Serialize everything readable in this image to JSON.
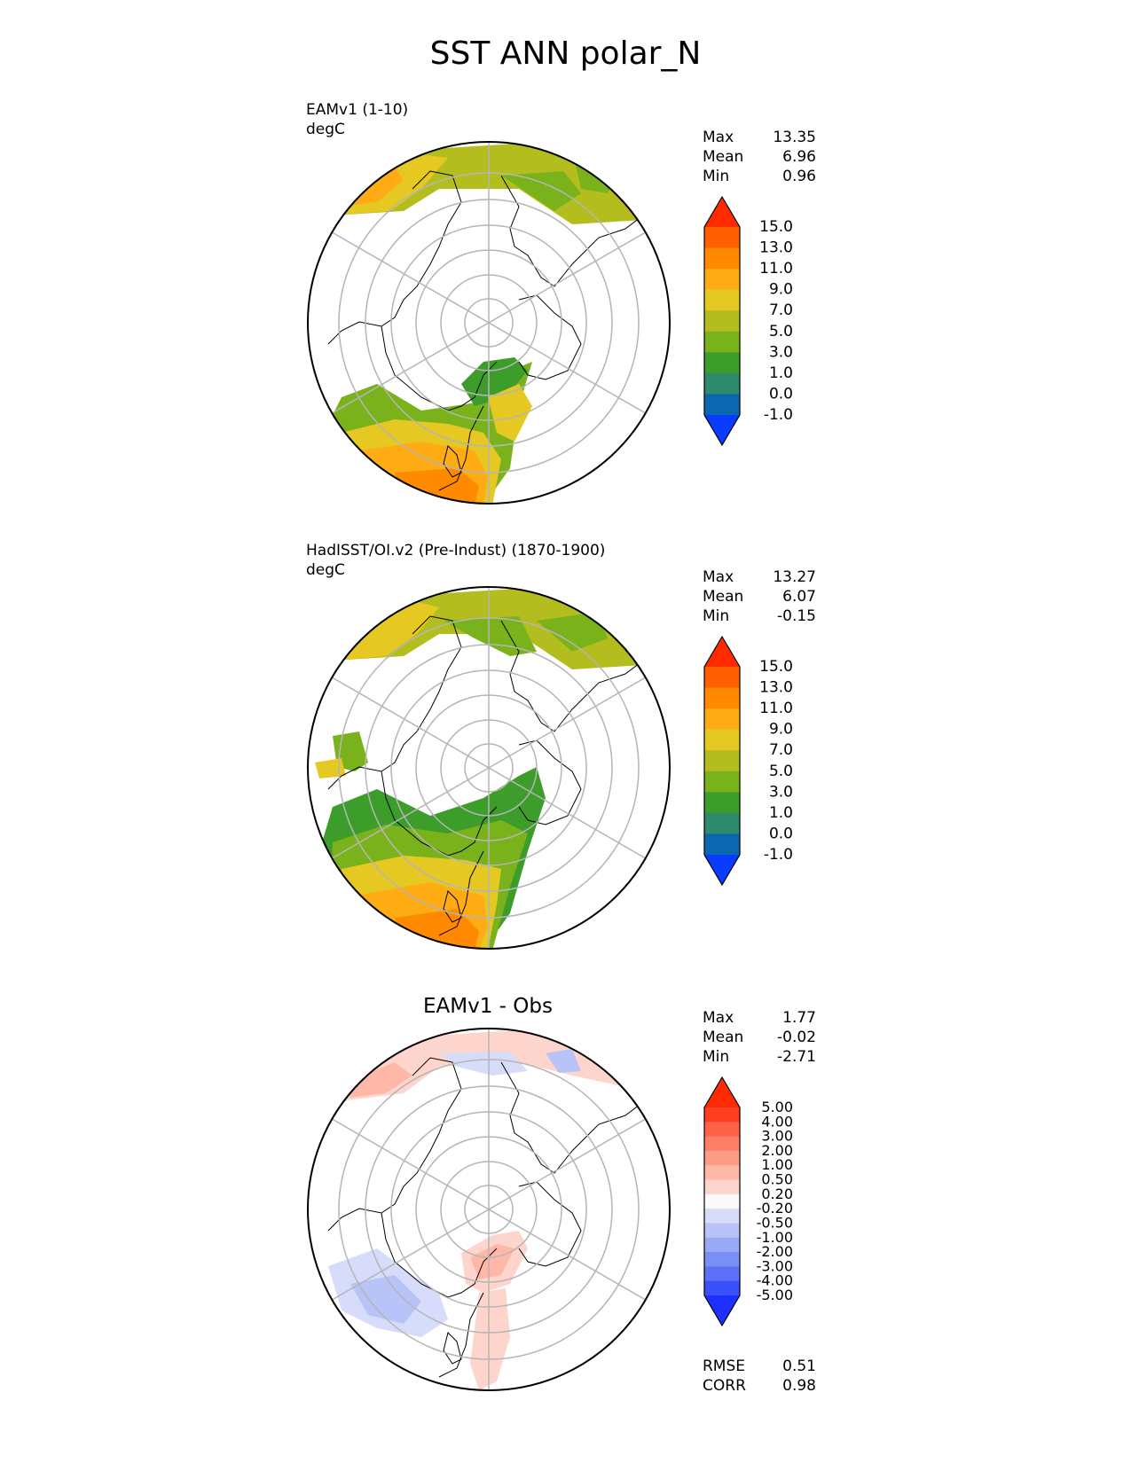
{
  "figure_title": "SST ANN polar_N",
  "chart_data": [
    {
      "type": "heatmap",
      "projection": "north polar stereographic",
      "label_line1": "EAMv1 (1-10)",
      "label_line2": "degC",
      "stats": {
        "max_label": "Max",
        "max": "13.35",
        "mean_label": "Mean",
        "mean": "6.96",
        "min_label": "Min",
        "min": "0.96"
      },
      "colorbar": {
        "ticks": [
          "15.0",
          "13.0",
          "11.0",
          "9.0",
          "7.0",
          "5.0",
          "3.0",
          "1.0",
          "0.0",
          "-1.0"
        ],
        "colors_top_to_bottom": [
          "#ff2a00",
          "#ff5f00",
          "#ff8a00",
          "#ffab14",
          "#e6c823",
          "#b3bd1e",
          "#7ab21c",
          "#3d9d2b",
          "#2e8a6b",
          "#0a67b0",
          "#0a3cff"
        ]
      }
    },
    {
      "type": "heatmap",
      "projection": "north polar stereographic",
      "label_line1": "HadISST/OI.v2 (Pre-Indust) (1870-1900)",
      "label_line2": "degC",
      "stats": {
        "max_label": "Max",
        "max": "13.27",
        "mean_label": "Mean",
        "mean": "6.07",
        "min_label": "Min",
        "min": "-0.15"
      },
      "colorbar": {
        "ticks": [
          "15.0",
          "13.0",
          "11.0",
          "9.0",
          "7.0",
          "5.0",
          "3.0",
          "1.0",
          "0.0",
          "-1.0"
        ],
        "colors_top_to_bottom": [
          "#ff2a00",
          "#ff5f00",
          "#ff8a00",
          "#ffab14",
          "#e6c823",
          "#b3bd1e",
          "#7ab21c",
          "#3d9d2b",
          "#2e8a6b",
          "#0a67b0",
          "#0a3cff"
        ]
      }
    },
    {
      "type": "heatmap",
      "projection": "north polar stereographic",
      "title": "EAMv1 - Obs",
      "stats": {
        "max_label": "Max",
        "max": "1.77",
        "mean_label": "Mean",
        "mean": "-0.02",
        "min_label": "Min",
        "min": "-2.71"
      },
      "metrics": {
        "rmse_label": "RMSE",
        "rmse": "0.51",
        "corr_label": "CORR",
        "corr": "0.98"
      },
      "colorbar": {
        "ticks": [
          "5.00",
          "4.00",
          "3.00",
          "2.00",
          "1.00",
          "0.50",
          "0.20",
          "-0.20",
          "-0.50",
          "-1.00",
          "-2.00",
          "-3.00",
          "-4.00",
          "-5.00"
        ],
        "colors_top_to_bottom": [
          "#ff2a00",
          "#ff3d1f",
          "#ff6347",
          "#ff7f66",
          "#ff9c85",
          "#ffb8a8",
          "#fdd5cc",
          "#fafafa",
          "#d6dcfa",
          "#b8c3f7",
          "#9aa9f5",
          "#7b8ef6",
          "#5c70f8",
          "#3b50fa",
          "#1e30ff"
        ]
      }
    }
  ]
}
